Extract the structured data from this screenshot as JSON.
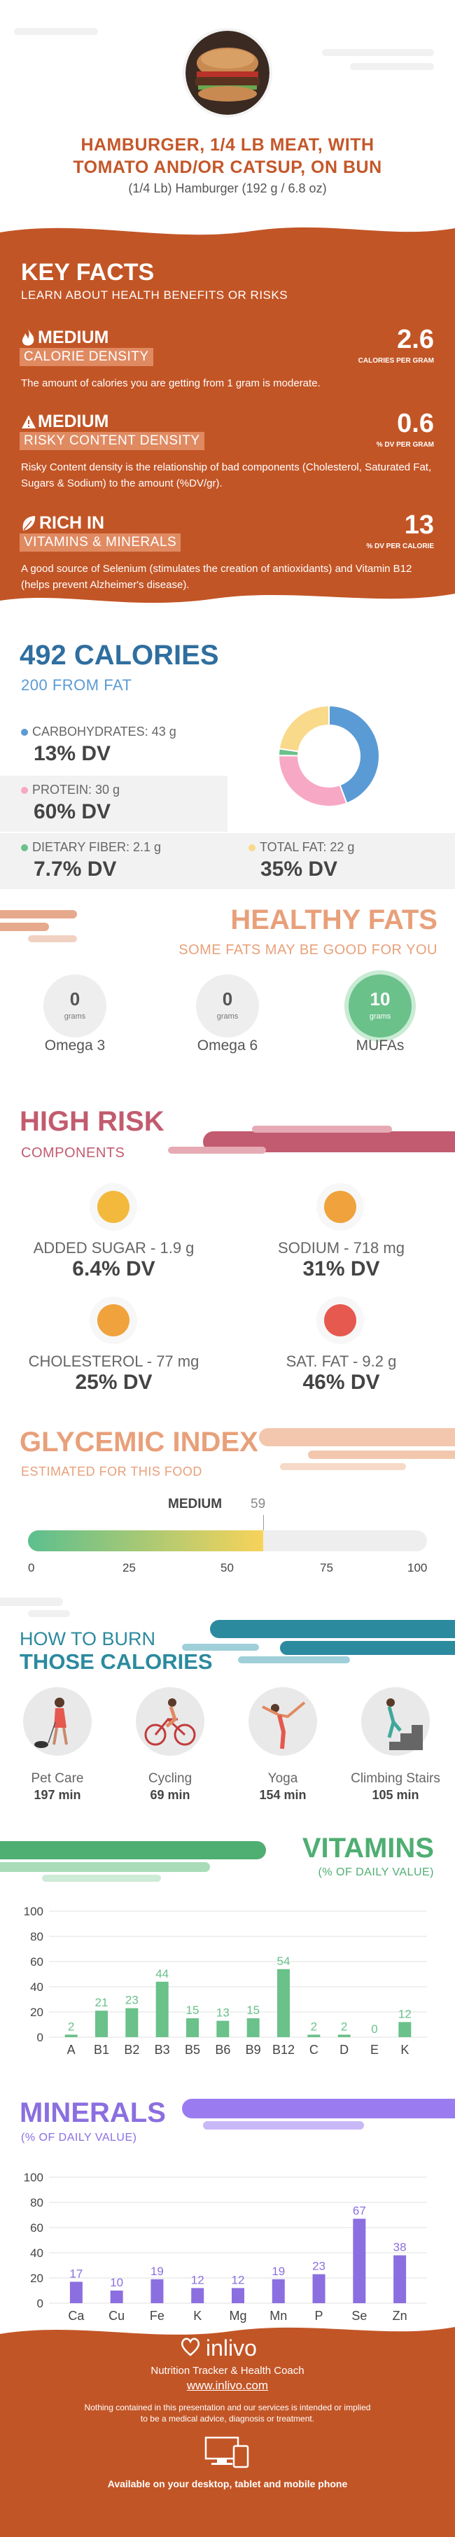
{
  "header": {
    "title_line1": "HAMBURGER, 1/4 LB MEAT, WITH",
    "title_line2": "TOMATO AND/OR CATSUP, ON BUN",
    "serving": "(1/4 Lb) Hamburger (192 g / 6.8 oz)"
  },
  "key_facts": {
    "title": "KEY FACTS",
    "subtitle": "LEARN ABOUT HEALTH BENEFITS OR RISKS",
    "items": [
      {
        "level": "MEDIUM",
        "label": "CALORIE DENSITY",
        "value": "2.6",
        "unit": "CALORIES PER GRAM",
        "desc": "The amount of calories you are getting from 1 gram is moderate."
      },
      {
        "level": "MEDIUM",
        "label": "RISKY CONTENT DENSITY",
        "value": "0.6",
        "unit": "% DV PER GRAM",
        "desc": "Risky Content density is the relationship of bad components (Cholesterol, Saturated Fat, Sugars & Sodium) to the amount (%DV/gr)."
      },
      {
        "level": "RICH  IN",
        "label": "VITAMINS & MINERALS",
        "value": "13",
        "unit": "% DV PER CALORIE",
        "desc": "A good source of Selenium (stimulates the creation of antioxidants) and Vitamin B12 (helps prevent Alzheimer's disease)."
      }
    ]
  },
  "calories": {
    "title": "492 CALORIES",
    "subtitle": "200 FROM FAT",
    "carbs_label": "CARBOHYDRATES: 43 g",
    "carbs_dv": "13% DV",
    "protein_label": "PROTEIN: 30 g",
    "protein_dv": "60% DV",
    "fiber_label": "DIETARY FIBER: 2.1 g",
    "fiber_dv": "7.7% DV",
    "fat_label": "TOTAL FAT: 22 g",
    "fat_dv": "35% DV",
    "colors": {
      "carbs": "#5b9bd5",
      "protein": "#f7a8c4",
      "fiber": "#6ac18a",
      "fat": "#f9d98a"
    }
  },
  "chart_data": [
    {
      "type": "pie",
      "title": "",
      "categories": [
        "CARBOHYDRATES",
        "PROTEIN",
        "DIETARY FIBER",
        "TOTAL FAT"
      ],
      "values": [
        43,
        30,
        2.1,
        22
      ]
    },
    {
      "type": "bar",
      "title": "VITAMINS",
      "ylabel": "(% OF DAILY VALUE)",
      "categories": [
        "A",
        "B1",
        "B2",
        "B3",
        "B5",
        "B6",
        "B9",
        "B12",
        "C",
        "D",
        "E",
        "K"
      ],
      "values": [
        2,
        21,
        23,
        44,
        15,
        13,
        15,
        54,
        2,
        2,
        0,
        12
      ],
      "ylim": [
        0,
        100
      ],
      "yticks": [
        0,
        20,
        40,
        60,
        80,
        100
      ]
    },
    {
      "type": "bar",
      "title": "MINERALS",
      "ylabel": "(% OF DAILY VALUE)",
      "categories": [
        "Ca",
        "Cu",
        "Fe",
        "K",
        "Mg",
        "Mn",
        "P",
        "Se",
        "Zn"
      ],
      "values": [
        17,
        10,
        19,
        12,
        12,
        19,
        23,
        67,
        38
      ],
      "ylim": [
        0,
        100
      ],
      "yticks": [
        0,
        20,
        40,
        60,
        80,
        100
      ]
    }
  ],
  "fats": {
    "title": "HEALTHY FATS",
    "subtitle": "SOME FATS MAY BE GOOD FOR YOU",
    "unit": "grams",
    "items": [
      {
        "name": "Omega 3",
        "value": "0"
      },
      {
        "name": "Omega 6",
        "value": "0"
      },
      {
        "name": "MUFAs",
        "value": "10"
      }
    ]
  },
  "risk": {
    "title": "HIGH RISK",
    "subtitle": "COMPONENTS",
    "items": [
      {
        "label": "ADDED SUGAR - 1.9 g",
        "dv": "6.4% DV",
        "mood": "happy"
      },
      {
        "label": "SODIUM - 718 mg",
        "dv": "31% DV",
        "mood": "happy"
      },
      {
        "label": "CHOLESTEROL - 77 mg",
        "dv": "25% DV",
        "mood": "happy"
      },
      {
        "label": "SAT. FAT - 9.2 g",
        "dv": "46% DV",
        "mood": "sad"
      }
    ]
  },
  "glycemic": {
    "title": "GLYCEMIC INDEX",
    "subtitle": "ESTIMATED FOR THIS FOOD",
    "level": "MEDIUM",
    "value": 59,
    "value_label": "59",
    "scale": [
      "0",
      "25",
      "50",
      "75",
      "100"
    ]
  },
  "burn": {
    "title1": "HOW TO BURN",
    "title2": "THOSE CALORIES",
    "items": [
      {
        "label": "Pet Care",
        "time": "197 min"
      },
      {
        "label": "Cycling",
        "time": "69 min"
      },
      {
        "label": "Yoga",
        "time": "154 min"
      },
      {
        "label": "Climbing Stairs",
        "time": "105 min"
      }
    ]
  },
  "vitamins": {
    "title": "VITAMINS",
    "subtitle": "(% OF DAILY VALUE)",
    "color": "#6ac18a"
  },
  "minerals": {
    "title": "MINERALS",
    "subtitle": "(% OF DAILY VALUE)",
    "color": "#8b6fe0"
  },
  "footer": {
    "brand": "inlivo",
    "tagline": "Nutrition Tracker & Health Coach",
    "url": "www.inlivo.com",
    "disclaimer1": "Nothing contained in this presentation and our services is intended or implied",
    "disclaimer2": "to be a medical advice, diagnosis or treatment.",
    "available": "Available on your desktop, tablet and mobile phone"
  }
}
